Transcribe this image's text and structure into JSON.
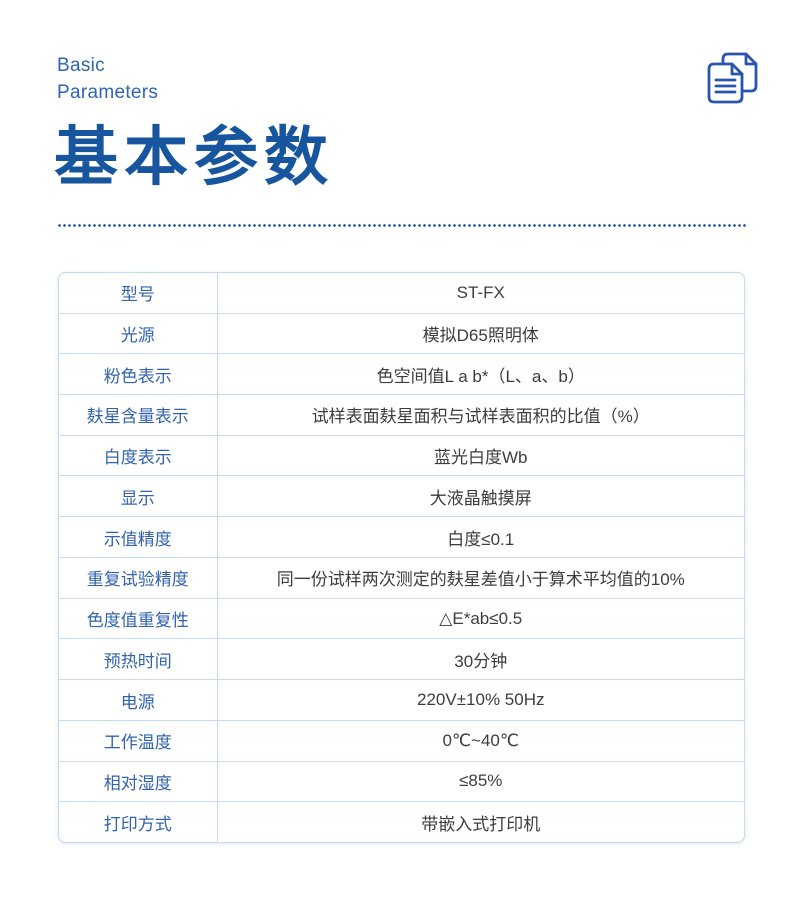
{
  "header": {
    "eyebrow_line1": "Basic",
    "eyebrow_line2": "Parameters",
    "title": "基本参数",
    "icon": "copy-documents-icon"
  },
  "colors": {
    "title_blue": "#17569e",
    "eyebrow_blue": "#2c66b3",
    "label_blue": "#3263ad",
    "value_text": "#3d3d3d",
    "border_blue": "#c6dbef",
    "dotted_blue": "#1f57a5",
    "icon_blue": "#2a55ad"
  },
  "table": {
    "rows": [
      {
        "label": "型号",
        "value": "ST-FX"
      },
      {
        "label": "光源",
        "value": "模拟D65照明体"
      },
      {
        "label": "粉色表示",
        "value": "色空间值L a b*（L、a、b）"
      },
      {
        "label": "麸星含量表示",
        "value": "试样表面麸星面积与试样表面积的比值（%）"
      },
      {
        "label": "白度表示",
        "value": "蓝光白度Wb"
      },
      {
        "label": "显示",
        "value": "大液晶触摸屏"
      },
      {
        "label": "示值精度",
        "value": "白度≤0.1"
      },
      {
        "label": "重复试验精度",
        "value": "同一份试样两次测定的麸星差值小于算术平均值的10%"
      },
      {
        "label": "色度值重复性",
        "value": "△E*ab≤0.5"
      },
      {
        "label": "预热时间",
        "value": "30分钟"
      },
      {
        "label": "电源",
        "value": "220V±10% 50Hz"
      },
      {
        "label": "工作温度",
        "value": "0℃~40℃"
      },
      {
        "label": "相对湿度",
        "value": "≤85%"
      },
      {
        "label": "打印方式",
        "value": "带嵌入式打印机"
      }
    ]
  }
}
